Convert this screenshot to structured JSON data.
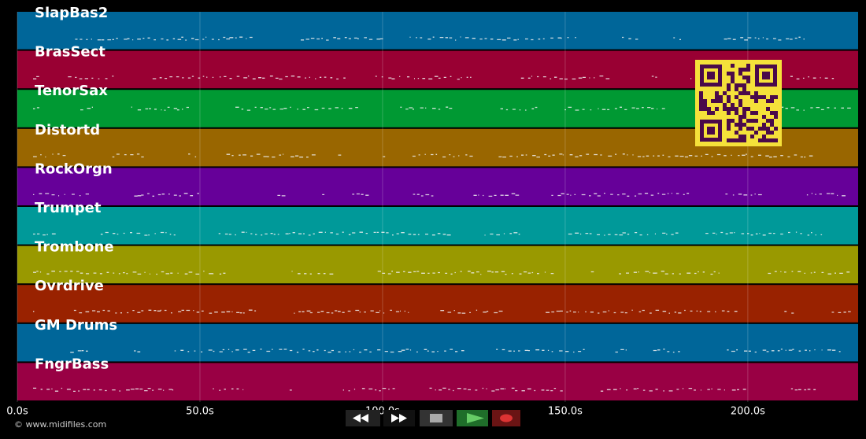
{
  "tracks": [
    {
      "name": "SlapBas2",
      "color": "#006699"
    },
    {
      "name": "BrasSect",
      "color": "#990033"
    },
    {
      "name": "TenorSax",
      "color": "#009933"
    },
    {
      "name": "Distortd",
      "color": "#996600"
    },
    {
      "name": "RockOrgn",
      "color": "#660099"
    },
    {
      "name": "Trumpet",
      "color": "#009999"
    },
    {
      "name": "Trombone",
      "color": "#999900"
    },
    {
      "name": "Ovrdrive",
      "color": "#992200"
    },
    {
      "name": "GM Drums",
      "color": "#006699"
    },
    {
      "name": "FngrBass",
      "color": "#990044"
    }
  ],
  "time_axis": {
    "xlim": [
      0,
      230.2
    ],
    "ticks": [
      {
        "value": 0,
        "label": "0.0s"
      },
      {
        "value": 50,
        "label": "50.0s"
      },
      {
        "value": 100,
        "label": "100.0s"
      },
      {
        "value": 150,
        "label": "150.0s"
      },
      {
        "value": 200,
        "label": "200.0s"
      }
    ]
  },
  "footer": {
    "copyright": "© www.midifiles.com"
  }
}
